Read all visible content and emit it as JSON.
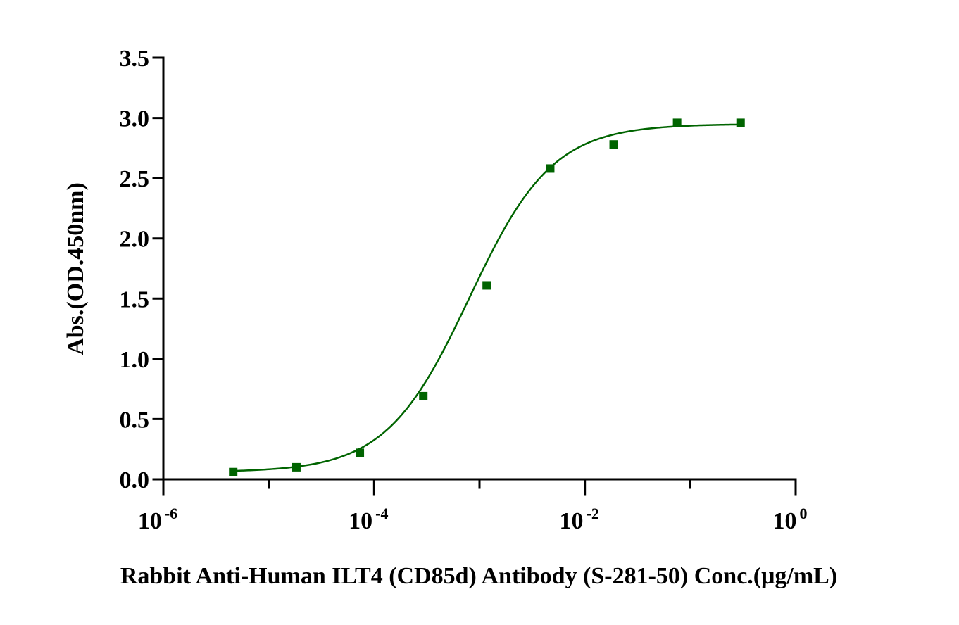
{
  "chart_data": {
    "type": "scatter",
    "title": "",
    "xlabel": "Rabbit Anti-Human ILT4 (CD85d) Antibody (S-281-50)  Conc.(μg/mL)",
    "ylabel": "Abs.(OD.450nm)",
    "x_scale": "log",
    "xlim": [
      1e-06,
      1
    ],
    "ylim": [
      0,
      3.5
    ],
    "grid": false,
    "legend": "none",
    "y_ticks": [
      "0.0",
      "0.5",
      "1.0",
      "1.5",
      "2.0",
      "2.5",
      "3.0",
      "3.5"
    ],
    "x_ticks": [
      {
        "base": "10",
        "exp": "-6"
      },
      {
        "base": "10",
        "exp": "-4"
      },
      {
        "base": "10",
        "exp": "-2"
      },
      {
        "base": "10",
        "exp": "0"
      }
    ],
    "color": "#006400",
    "series": [
      {
        "marker": "square",
        "points": [
          {
            "x": 4.6e-06,
            "y": 0.06
          },
          {
            "x": 1.83e-05,
            "y": 0.1
          },
          {
            "x": 7.32e-05,
            "y": 0.22
          },
          {
            "x": 0.000293,
            "y": 0.69
          },
          {
            "x": 0.00117,
            "y": 1.61
          },
          {
            "x": 0.00469,
            "y": 2.58
          },
          {
            "x": 0.01875,
            "y": 2.78
          },
          {
            "x": 0.075,
            "y": 2.96
          },
          {
            "x": 0.3,
            "y": 2.96
          }
        ],
        "fit": {
          "model": "4PL",
          "bottom": 0.06,
          "top": 2.95,
          "ec50": 0.0008,
          "hill": 1.1
        }
      }
    ]
  }
}
